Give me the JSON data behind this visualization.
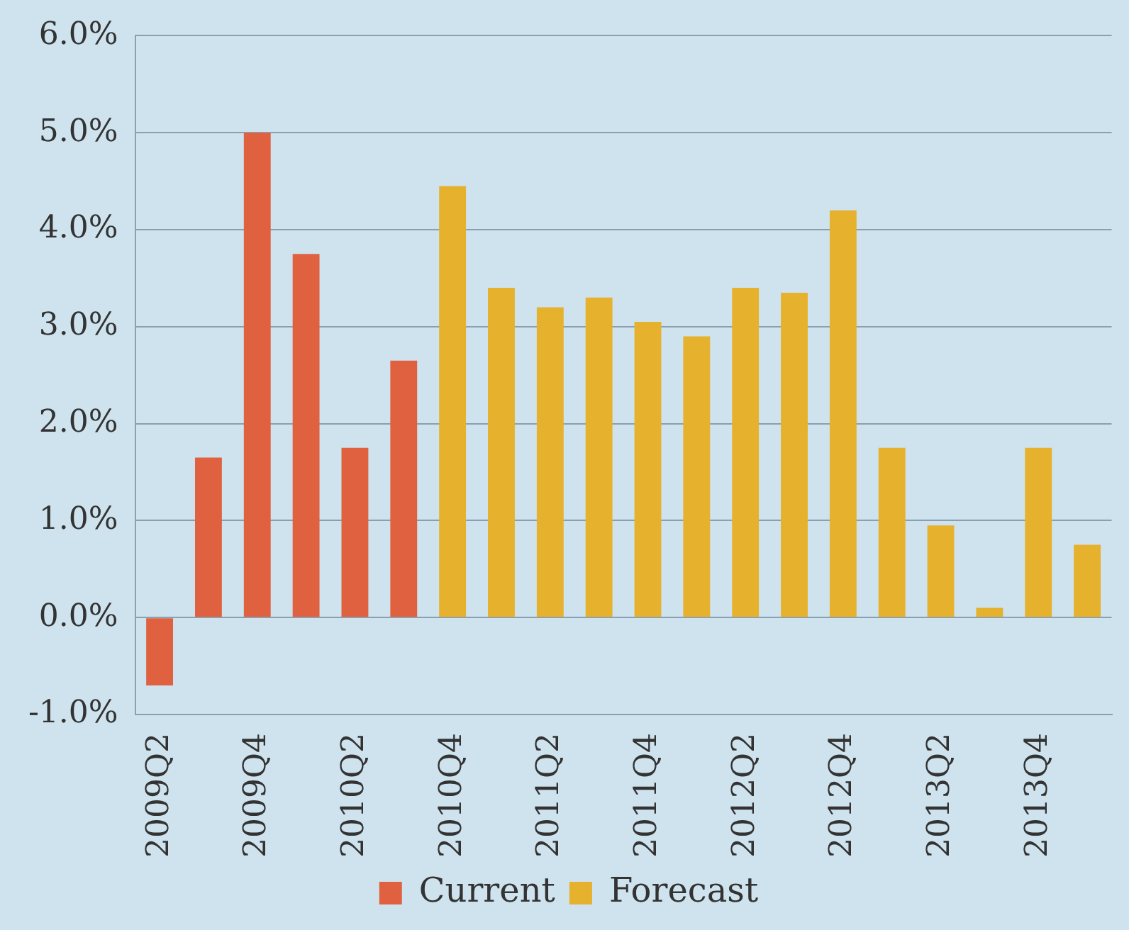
{
  "chart_data": {
    "type": "bar",
    "categories": [
      "2009Q2",
      null,
      "2009Q4",
      null,
      "2010Q2",
      null,
      "2010Q4",
      null,
      "2011Q2",
      null,
      "2011Q4",
      null,
      "2012Q2",
      null,
      "2012Q4",
      null,
      "2013Q2",
      null,
      "2013Q4",
      null
    ],
    "series": [
      {
        "name": "Current",
        "color": "#e0613f",
        "values": [
          -0.7,
          1.65,
          5.0,
          3.75,
          1.75,
          2.65,
          null,
          null,
          null,
          null,
          null,
          null,
          null,
          null,
          null,
          null,
          null,
          null,
          null,
          null
        ]
      },
      {
        "name": "Forecast",
        "color": "#e6b12c",
        "values": [
          null,
          null,
          null,
          null,
          null,
          null,
          4.45,
          3.4,
          3.2,
          3.3,
          3.05,
          2.9,
          3.4,
          3.35,
          4.2,
          1.75,
          0.95,
          0.1,
          1.75,
          0.75
        ]
      }
    ],
    "ylim": [
      -1,
      6
    ],
    "yticks": [
      {
        "value": -1,
        "label": "-1.0%"
      },
      {
        "value": 0,
        "label": "0.0%"
      },
      {
        "value": 1,
        "label": "1.0%"
      },
      {
        "value": 2,
        "label": "2.0%"
      },
      {
        "value": 3,
        "label": "3.0%"
      },
      {
        "value": 4,
        "label": "4.0%"
      },
      {
        "value": 5,
        "label": "5.0%"
      },
      {
        "value": 6,
        "label": "6.0%"
      }
    ],
    "grid": "y",
    "legend": "bottom"
  }
}
